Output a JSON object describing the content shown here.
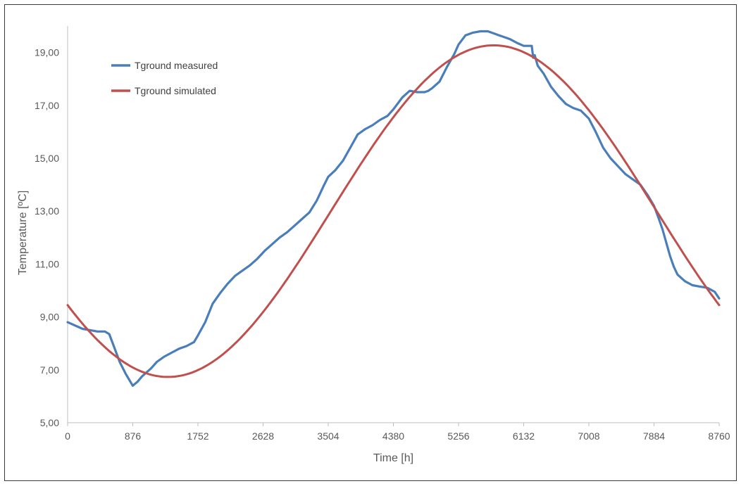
{
  "chart_data": {
    "type": "line",
    "title": "",
    "xlabel": "Time [h]",
    "ylabel": "Temperature [ºC]",
    "xlim": [
      0,
      8760
    ],
    "ylim": [
      5,
      20
    ],
    "x_ticks": [
      0,
      876,
      1752,
      2628,
      3504,
      4380,
      5256,
      6132,
      7008,
      7884,
      8760
    ],
    "x_tick_labels": [
      "0",
      "876",
      "1752",
      "2628",
      "3504",
      "4380",
      "5256",
      "6132",
      "7008",
      "7884",
      "8760"
    ],
    "y_ticks": [
      5,
      7,
      9,
      11,
      13,
      15,
      17,
      19
    ],
    "y_tick_labels": [
      "5,00",
      "7,00",
      "9,00",
      "11,00",
      "13,00",
      "15,00",
      "17,00",
      "19,00"
    ],
    "grid": false,
    "legend": "top-left",
    "series": [
      {
        "name": "Tground measured",
        "color": "#4a7ebb",
        "x": [
          0,
          200,
          400,
          500,
          560,
          620,
          700,
          780,
          876,
          940,
          1000,
          1060,
          1120,
          1200,
          1300,
          1400,
          1500,
          1600,
          1700,
          1752,
          1850,
          1950,
          2050,
          2150,
          2250,
          2350,
          2450,
          2550,
          2650,
          2750,
          2850,
          2950,
          3050,
          3150,
          3250,
          3350,
          3450,
          3504,
          3600,
          3700,
          3800,
          3900,
          4000,
          4100,
          4200,
          4300,
          4380,
          4500,
          4600,
          4700,
          4750,
          4800,
          4850,
          4900,
          5000,
          5100,
          5200,
          5256,
          5350,
          5450,
          5550,
          5650,
          5750,
          5800,
          5850,
          5950,
          6050,
          6132,
          6200,
          6240,
          6260,
          6280,
          6320,
          6400,
          6500,
          6600,
          6700,
          6800,
          6900,
          7008,
          7100,
          7200,
          7300,
          7400,
          7500,
          7600,
          7700,
          7800,
          7884,
          7950,
          8000,
          8050,
          8100,
          8150,
          8200,
          8300,
          8400,
          8500,
          8600,
          8700,
          8760
        ],
        "y": [
          8.8,
          8.55,
          8.45,
          8.45,
          8.35,
          7.9,
          7.3,
          6.85,
          6.4,
          6.55,
          6.75,
          6.9,
          7.05,
          7.3,
          7.5,
          7.65,
          7.8,
          7.9,
          8.05,
          8.3,
          8.8,
          9.5,
          9.9,
          10.25,
          10.55,
          10.75,
          10.95,
          11.2,
          11.5,
          11.75,
          12.0,
          12.2,
          12.45,
          12.7,
          12.95,
          13.4,
          14.0,
          14.3,
          14.55,
          14.9,
          15.4,
          15.9,
          16.1,
          16.25,
          16.45,
          16.6,
          16.85,
          17.3,
          17.55,
          17.5,
          17.5,
          17.5,
          17.55,
          17.65,
          17.9,
          18.45,
          18.95,
          19.3,
          19.65,
          19.75,
          19.8,
          19.8,
          19.7,
          19.65,
          19.6,
          19.5,
          19.35,
          19.25,
          19.25,
          19.25,
          18.8,
          18.9,
          18.5,
          18.2,
          17.7,
          17.35,
          17.05,
          16.9,
          16.8,
          16.5,
          16.0,
          15.4,
          15.0,
          14.7,
          14.4,
          14.2,
          14.0,
          13.6,
          13.2,
          12.7,
          12.3,
          11.8,
          11.3,
          10.9,
          10.6,
          10.35,
          10.2,
          10.15,
          10.1,
          9.95,
          9.7
        ]
      },
      {
        "name": "Tground simulated",
        "color": "#c0504d",
        "model": "sinusoid",
        "mean": 13.0,
        "amplitude": 6.27,
        "min_at_h": 1350,
        "period_h": 8760
      }
    ]
  }
}
